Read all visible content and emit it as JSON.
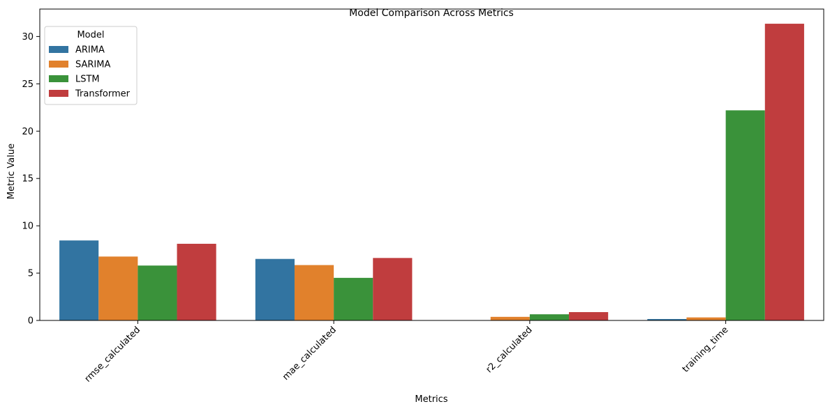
{
  "chart_data": {
    "type": "bar",
    "title": "Model Comparison Across Metrics",
    "xlabel": "Metrics",
    "ylabel": "Metric Value",
    "categories": [
      "rmse_calculated",
      "mae_calculated",
      "r2_calculated",
      "training_time"
    ],
    "ylim": [
      0,
      32.9
    ],
    "yticks": [
      0,
      5,
      10,
      15,
      20,
      25,
      30
    ],
    "grid": false,
    "legend": {
      "title": "Model",
      "placement": "top-left"
    },
    "series": [
      {
        "name": "ARIMA",
        "color": "#3274a1",
        "values": [
          8.45,
          6.5,
          0.0,
          0.15
        ]
      },
      {
        "name": "SARIMA",
        "color": "#e1812c",
        "values": [
          6.75,
          5.85,
          0.38,
          0.32
        ]
      },
      {
        "name": "LSTM",
        "color": "#3a923a",
        "values": [
          5.8,
          4.5,
          0.65,
          22.2
        ]
      },
      {
        "name": "Transformer",
        "color": "#c03d3e",
        "values": [
          8.1,
          6.6,
          0.88,
          31.35
        ]
      }
    ]
  }
}
